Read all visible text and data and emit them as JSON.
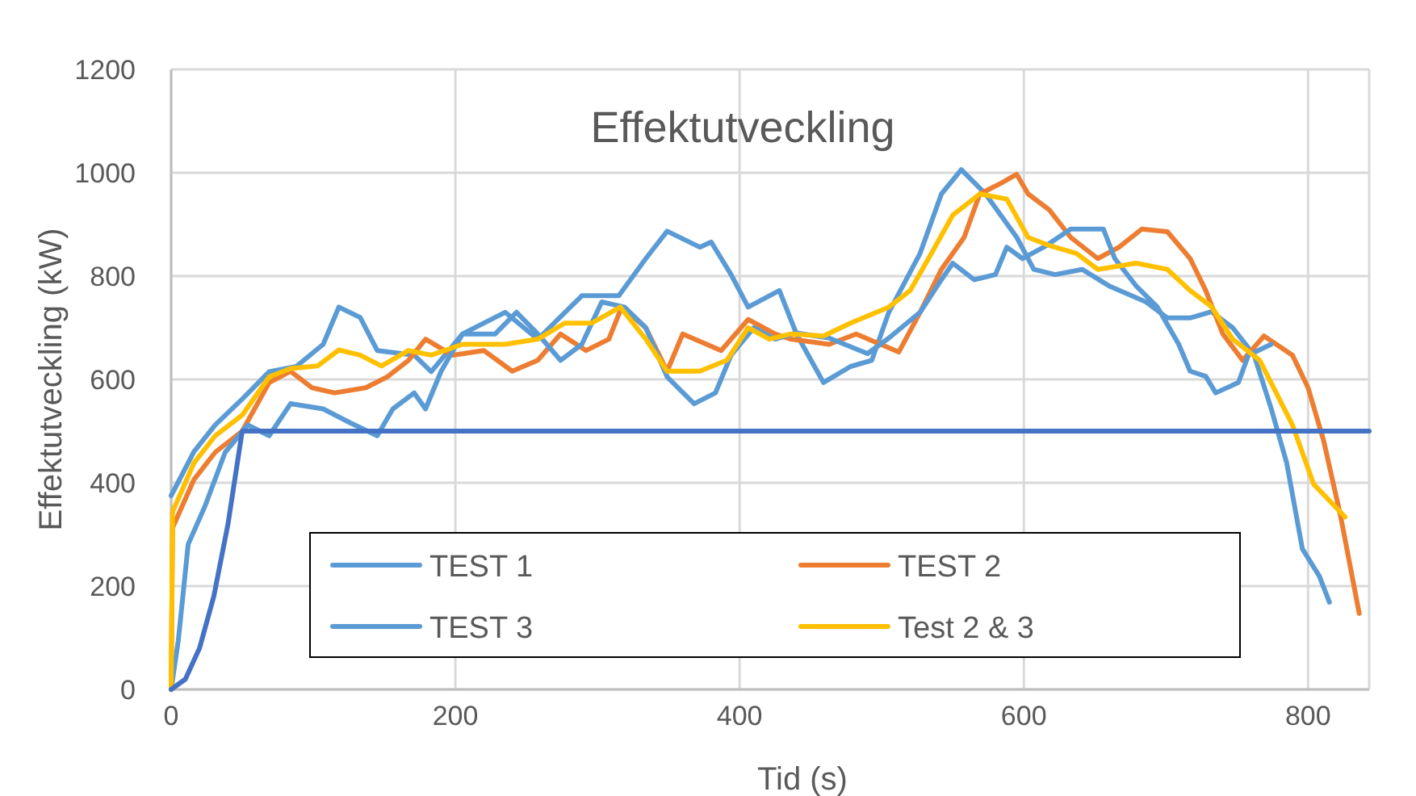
{
  "chart_data": {
    "type": "line",
    "title": "Effektutveckling",
    "xlabel": "Tid (s)",
    "ylabel": "Effektutveckling (kW)",
    "xlim": [
      0,
      843
    ],
    "ylim": [
      0,
      1200
    ],
    "xticks": [
      0,
      200,
      400,
      600,
      800
    ],
    "yticks": [
      0,
      200,
      400,
      600,
      800,
      1000,
      1200
    ],
    "grid": true,
    "legend": "bottom",
    "line_style": "solid",
    "series": [
      {
        "name": "TEST 1",
        "color": "#5b9bd5",
        "x": [
          0,
          16,
          31,
          50,
          69,
          88,
          107,
          118,
          133,
          145,
          171,
          183,
          205,
          235,
          258,
          289,
          315,
          334,
          349,
          372,
          380,
          394,
          406,
          421,
          428,
          440,
          459,
          478,
          493,
          505,
          527,
          542,
          556,
          573,
          595,
          607,
          622,
          641,
          660,
          686,
          701,
          717,
          732,
          747,
          762,
          774,
          785,
          796,
          808,
          815
        ],
        "values": [
          375,
          460,
          512,
          562,
          615,
          625,
          668,
          740,
          720,
          656,
          647,
          615,
          688,
          730,
          678,
          762,
          762,
          834,
          887,
          856,
          866,
          803,
          740,
          762,
          772,
          688,
          594,
          625,
          637,
          730,
          844,
          959,
          1006,
          959,
          875,
          813,
          803,
          813,
          781,
          750,
          719,
          719,
          731,
          700,
          647,
          544,
          438,
          272,
          219,
          169
        ]
      },
      {
        "name": "TEST 2",
        "color": "#ed7d31",
        "x": [
          0,
          1,
          16,
          31,
          50,
          69,
          84,
          99,
          115,
          137,
          152,
          167,
          179,
          198,
          220,
          240,
          258,
          274,
          292,
          308,
          317,
          334,
          349,
          360,
          387,
          406,
          425,
          436,
          463,
          482,
          512,
          527,
          542,
          558,
          569,
          584,
          595,
          603,
          618,
          633,
          652,
          667,
          683,
          701,
          717,
          728,
          740,
          754,
          769,
          789,
          800,
          811,
          823,
          836
        ],
        "values": [
          0,
          313,
          406,
          459,
          500,
          594,
          616,
          584,
          574,
          584,
          605,
          637,
          678,
          647,
          656,
          616,
          637,
          688,
          656,
          678,
          740,
          700,
          616,
          688,
          656,
          716,
          688,
          678,
          668,
          688,
          653,
          730,
          813,
          875,
          959,
          980,
          997,
          959,
          928,
          875,
          834,
          856,
          891,
          886,
          834,
          772,
          688,
          637,
          684,
          647,
          584,
          481,
          334,
          147
        ]
      },
      {
        "name": "TEST 3",
        "color": "#5b9bd5",
        "x": [
          0,
          5,
          12,
          24,
          38,
          54,
          69,
          84,
          107,
          126,
          145,
          156,
          171,
          179,
          190,
          205,
          228,
          243,
          258,
          274,
          289,
          303,
          319,
          334,
          349,
          368,
          383,
          394,
          410,
          425,
          440,
          463,
          490,
          505,
          527,
          542,
          550,
          565,
          580,
          588,
          599,
          614,
          633,
          656,
          664,
          679,
          694,
          709,
          717,
          728,
          735,
          751,
          758,
          774
        ],
        "values": [
          0,
          94,
          281,
          356,
          459,
          512,
          491,
          553,
          543,
          516,
          491,
          543,
          574,
          543,
          616,
          688,
          688,
          730,
          688,
          637,
          668,
          750,
          740,
          700,
          605,
          553,
          574,
          647,
          700,
          678,
          690,
          680,
          650,
          680,
          730,
          793,
          825,
          793,
          803,
          856,
          834,
          856,
          891,
          891,
          834,
          781,
          740,
          668,
          616,
          606,
          574,
          594,
          647,
          668
        ]
      },
      {
        "name": "Test 2 & 3",
        "color": "#ffc000",
        "x": [
          0,
          1,
          16,
          31,
          50,
          69,
          84,
          103,
          118,
          133,
          148,
          167,
          183,
          205,
          235,
          258,
          277,
          296,
          316,
          334,
          349,
          372,
          391,
          406,
          421,
          436,
          459,
          478,
          505,
          520,
          535,
          550,
          569,
          588,
          603,
          618,
          637,
          652,
          679,
          701,
          717,
          732,
          747,
          766,
          789,
          804,
          826
        ],
        "values": [
          0,
          344,
          438,
          491,
          531,
          605,
          621,
          626,
          657,
          647,
          626,
          656,
          647,
          668,
          668,
          678,
          709,
          709,
          740,
          678,
          616,
          616,
          637,
          700,
          678,
          688,
          684,
          709,
          740,
          772,
          844,
          918,
          959,
          949,
          875,
          859,
          844,
          813,
          825,
          813,
          772,
          741,
          678,
          637,
          512,
          397,
          334
        ]
      },
      {
        "color": "#4472c4",
        "x": [
          0,
          10,
          20,
          30,
          40,
          50,
          843
        ],
        "values": [
          0,
          20,
          80,
          180,
          320,
          500,
          500
        ]
      }
    ]
  }
}
